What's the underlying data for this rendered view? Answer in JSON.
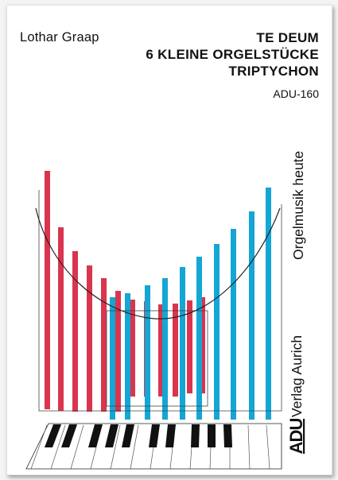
{
  "cover": {
    "composer": "Lothar Graap",
    "title_lines": [
      "TE DEUM",
      "6 KLEINE ORGELSTÜCKE",
      "TRIPTYCHON"
    ],
    "catalog_number": "ADU-160",
    "series": "Orgelmusik heute",
    "publisher": "Verlag Aurich",
    "publisher_logo": "ADU"
  },
  "colors": {
    "red_bars": "#d9354f",
    "blue_bars": "#14a6d4",
    "keys": "#111111"
  },
  "artwork": {
    "description_icon": "organ-pipes-keyboard-illustration"
  }
}
